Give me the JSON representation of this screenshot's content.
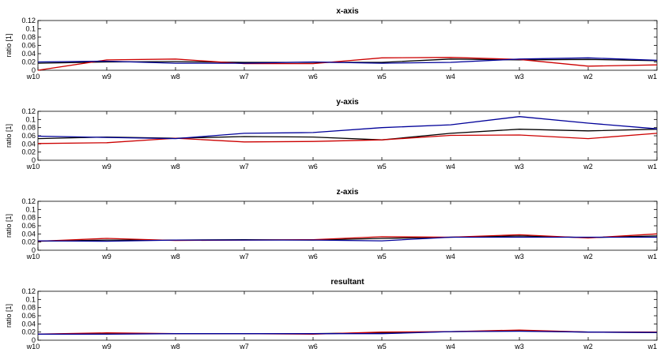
{
  "chart_data": [
    {
      "type": "line",
      "title": "x-axis",
      "ylabel": "ratio [1]",
      "xlabel": "",
      "categories": [
        "w10",
        "w9",
        "w8",
        "w7",
        "w6",
        "w5",
        "w4",
        "w3",
        "w2",
        "w1"
      ],
      "yticks": [
        "0",
        "0.02",
        "0.04",
        "0.06",
        "0.08",
        "0.1",
        "0.12"
      ],
      "ylim": [
        0,
        0.12
      ],
      "grid": false,
      "series": [
        {
          "color": "#000000",
          "values": [
            0.017,
            0.02,
            0.021,
            0.019,
            0.019,
            0.019,
            0.027,
            0.025,
            0.026,
            0.023
          ]
        },
        {
          "color": "#cc0000",
          "values": [
            0.0,
            0.025,
            0.027,
            0.016,
            0.016,
            0.03,
            0.031,
            0.026,
            0.01,
            0.013
          ]
        },
        {
          "color": "#000099",
          "values": [
            0.02,
            0.022,
            0.017,
            0.017,
            0.02,
            0.017,
            0.019,
            0.027,
            0.03,
            0.024
          ]
        }
      ]
    },
    {
      "type": "line",
      "title": "y-axis",
      "ylabel": "ratio [1]",
      "xlabel": "",
      "categories": [
        "w10",
        "w9",
        "w8",
        "w7",
        "w6",
        "w5",
        "w4",
        "w3",
        "w2",
        "w1"
      ],
      "yticks": [
        "0",
        "0.02",
        "0.04",
        "0.06",
        "0.08",
        "0.1",
        "0.12"
      ],
      "ylim": [
        0,
        0.12
      ],
      "grid": false,
      "series": [
        {
          "color": "#000000",
          "values": [
            0.053,
            0.057,
            0.054,
            0.058,
            0.057,
            0.05,
            0.066,
            0.076,
            0.072,
            0.076
          ]
        },
        {
          "color": "#cc0000",
          "values": [
            0.041,
            0.043,
            0.054,
            0.045,
            0.046,
            0.05,
            0.061,
            0.062,
            0.053,
            0.066
          ]
        },
        {
          "color": "#000099",
          "values": [
            0.059,
            0.056,
            0.053,
            0.066,
            0.068,
            0.08,
            0.087,
            0.107,
            0.091,
            0.077
          ]
        }
      ]
    },
    {
      "type": "line",
      "title": "z-axis",
      "ylabel": "ratio [1]",
      "xlabel": "",
      "categories": [
        "w10",
        "w9",
        "w8",
        "w7",
        "w6",
        "w5",
        "w4",
        "w3",
        "w2",
        "w1"
      ],
      "yticks": [
        "0",
        "0.02",
        "0.04",
        "0.06",
        "0.08",
        "0.1",
        "0.12"
      ],
      "ylim": [
        0,
        0.12
      ],
      "grid": false,
      "series": [
        {
          "color": "#000000",
          "values": [
            0.022,
            0.025,
            0.025,
            0.026,
            0.025,
            0.029,
            0.032,
            0.035,
            0.031,
            0.035
          ]
        },
        {
          "color": "#cc0000",
          "values": [
            0.022,
            0.029,
            0.024,
            0.025,
            0.026,
            0.033,
            0.032,
            0.038,
            0.03,
            0.04
          ]
        },
        {
          "color": "#000099",
          "values": [
            0.023,
            0.022,
            0.025,
            0.025,
            0.025,
            0.023,
            0.032,
            0.032,
            0.032,
            0.032
          ]
        }
      ]
    },
    {
      "type": "line",
      "title": "resultant",
      "ylabel": "ratio [1]",
      "xlabel": "",
      "categories": [
        "w10",
        "w9",
        "w8",
        "w7",
        "w6",
        "w5",
        "w4",
        "w3",
        "w2",
        "w1"
      ],
      "yticks": [
        "0",
        "0.02",
        "0.04",
        "0.06",
        "0.08",
        "0.1",
        "0.12"
      ],
      "ylim": [
        0,
        0.12
      ],
      "grid": false,
      "series": [
        {
          "color": "#000000",
          "values": [
            0.015,
            0.016,
            0.016,
            0.016,
            0.016,
            0.018,
            0.021,
            0.023,
            0.02,
            0.019
          ]
        },
        {
          "color": "#cc0000",
          "values": [
            0.015,
            0.018,
            0.016,
            0.016,
            0.015,
            0.02,
            0.021,
            0.025,
            0.02,
            0.02
          ]
        },
        {
          "color": "#000099",
          "values": [
            0.015,
            0.015,
            0.016,
            0.016,
            0.016,
            0.016,
            0.021,
            0.022,
            0.02,
            0.019
          ]
        }
      ]
    }
  ]
}
